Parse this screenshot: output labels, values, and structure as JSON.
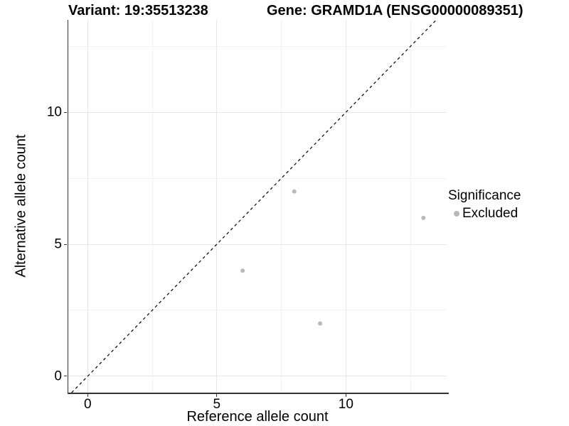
{
  "chart_data": {
    "type": "scatter",
    "title_left": "Variant: 19:35513238",
    "title_right": "Gene: GRAMD1A (ENSG00000089351)",
    "xlabel": "Reference allele count",
    "ylabel": "Alternative allele count",
    "xlim": [
      -0.75,
      13.9
    ],
    "ylim": [
      -0.62,
      13.5
    ],
    "x_major_ticks": [
      0,
      5,
      10
    ],
    "y_major_ticks": [
      0,
      5,
      10
    ],
    "x_minor_ticks": [
      2.5,
      7.5,
      12.5
    ],
    "y_minor_ticks": [
      2.5,
      7.5,
      12.5
    ],
    "grid": "major+minor",
    "identity_line": {
      "equation": "y = x",
      "style": "dashed",
      "color": "#000000"
    },
    "series": [
      {
        "name": "Excluded",
        "color": "#b8b8b8",
        "points": [
          {
            "x": 6,
            "y": 4
          },
          {
            "x": 8,
            "y": 7
          },
          {
            "x": 9,
            "y": 2
          },
          {
            "x": 13,
            "y": 6
          }
        ]
      }
    ],
    "legend": {
      "title": "Significance",
      "position": "right",
      "items": [
        {
          "label": "Excluded",
          "color": "#b8b8b8"
        }
      ]
    }
  },
  "colors": {
    "axis_line": "#333333",
    "grid_major": "#e6e6e6",
    "grid_minor": "#f2f2f2",
    "point": "#b8b8b8",
    "text": "#000000",
    "background": "#ffffff"
  }
}
